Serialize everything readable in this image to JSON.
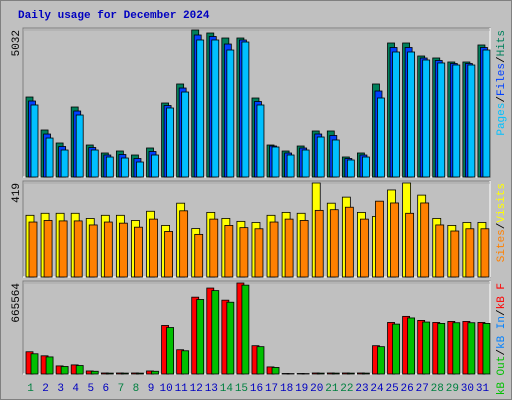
{
  "title": "Daily usage for December 2024",
  "title_color": "#0000c0",
  "chart_data": [
    {
      "type": "bar",
      "ylim": [
        0,
        5032
      ],
      "yticks": [
        5032
      ],
      "legend_separator": "/",
      "series": [
        {
          "name": "Hits",
          "color": "#00805c",
          "values": [
            2738,
            1609,
            1164,
            2396,
            1095,
            822,
            890,
            753,
            993,
            2533,
            3184,
            5032,
            4929,
            4758,
            4758,
            2704,
            1095,
            890,
            1061,
            1575,
            1575,
            685,
            822,
            3184,
            4587,
            4587,
            4142,
            4074,
            3937,
            3937,
            4519
          ]
        },
        {
          "name": "Files",
          "color": "#0040ff",
          "values": [
            2601,
            1471,
            1044,
            2259,
            1009,
            753,
            770,
            633,
            873,
            2447,
            3046,
            4861,
            4810,
            4552,
            4690,
            2584,
            1061,
            821,
            992,
            1472,
            1421,
            633,
            753,
            2944,
            4433,
            4433,
            4073,
            3988,
            3885,
            3885,
            4433
          ]
        },
        {
          "name": "Pages",
          "color": "#00c0ff",
          "values": [
            2465,
            1334,
            924,
            2122,
            924,
            684,
            650,
            513,
            753,
            2362,
            2909,
            4690,
            4690,
            4347,
            4621,
            2465,
            1027,
            753,
            924,
            1369,
            1267,
            582,
            684,
            2704,
            4279,
            4279,
            4005,
            3903,
            3834,
            3834,
            4347
          ]
        }
      ]
    },
    {
      "type": "bar",
      "ylim": [
        0,
        419
      ],
      "yticks": [
        419
      ],
      "legend_separator": "/",
      "series": [
        {
          "name": "Visits",
          "color": "#ffff00",
          "values": [
            275,
            284,
            284,
            284,
            261,
            275,
            275,
            252,
            293,
            230,
            329,
            216,
            288,
            261,
            248,
            243,
            275,
            288,
            284,
            419,
            329,
            356,
            288,
            270,
            388,
            419,
            365,
            261,
            230,
            243,
            243
          ]
        },
        {
          "name": "Sites",
          "color": "#ff8000",
          "values": [
            245,
            252,
            250,
            250,
            232,
            245,
            240,
            222,
            258,
            203,
            295,
            190,
            258,
            230,
            220,
            215,
            245,
            258,
            252,
            297,
            300,
            311,
            258,
            338,
            330,
            284,
            330,
            232,
            205,
            215,
            215
          ]
        }
      ]
    },
    {
      "type": "bar",
      "ylim": [
        0,
        665564
      ],
      "yticks": [
        665564
      ],
      "legend_separator": "/",
      "categories": [
        "1",
        "2",
        "3",
        "4",
        "5",
        "6",
        "7",
        "8",
        "9",
        "10",
        "11",
        "12",
        "13",
        "14",
        "15",
        "16",
        "17",
        "18",
        "19",
        "20",
        "21",
        "22",
        "23",
        "24",
        "25",
        "26",
        "27",
        "28",
        "29",
        "30",
        "31"
      ],
      "category_colors": [
        "#008040",
        "#0000c0",
        "#0000c0",
        "#0000c0",
        "#0000c0",
        "#0000c0",
        "#008040",
        "#008040",
        "#0000c0",
        "#0000c0",
        "#0000c0",
        "#0000c0",
        "#0000c0",
        "#008040",
        "#008040",
        "#0000c0",
        "#0000c0",
        "#0000c0",
        "#0000c0",
        "#0000c0",
        "#008040",
        "#008040",
        "#0000c0",
        "#0000c0",
        "#0000c0",
        "#0000c0",
        "#0000c0",
        "#008040",
        "#008040",
        "#0000c0",
        "#0000c0"
      ],
      "series": [
        {
          "name": "kB F",
          "color": "#ff0000",
          "values": [
            162700,
            133100,
            59200,
            66600,
            22200,
            7400,
            7400,
            7400,
            22200,
            355000,
            177500,
            562000,
            628600,
            540000,
            665564,
            207100,
            51800,
            3700,
            3700,
            7400,
            7400,
            7400,
            7400,
            207100,
            377100,
            421500,
            392000,
            377100,
            384500,
            384500,
            377100
          ]
        },
        {
          "name": "kB In",
          "color": "#0080ff",
          "values": [
            0,
            0,
            0,
            0,
            0,
            0,
            0,
            0,
            0,
            0,
            0,
            0,
            0,
            0,
            0,
            0,
            0,
            0,
            0,
            0,
            0,
            0,
            0,
            0,
            0,
            0,
            0,
            0,
            0,
            0,
            0
          ]
        },
        {
          "name": "kB Out",
          "color": "#00c000",
          "values": [
            148000,
            125000,
            55000,
            62000,
            20000,
            6500,
            6500,
            6500,
            20000,
            340000,
            170000,
            545000,
            610000,
            525000,
            650000,
            200000,
            48000,
            3000,
            3000,
            6500,
            6500,
            6500,
            6500,
            200000,
            365000,
            410000,
            380000,
            370000,
            375000,
            375000,
            370000
          ]
        }
      ]
    }
  ]
}
